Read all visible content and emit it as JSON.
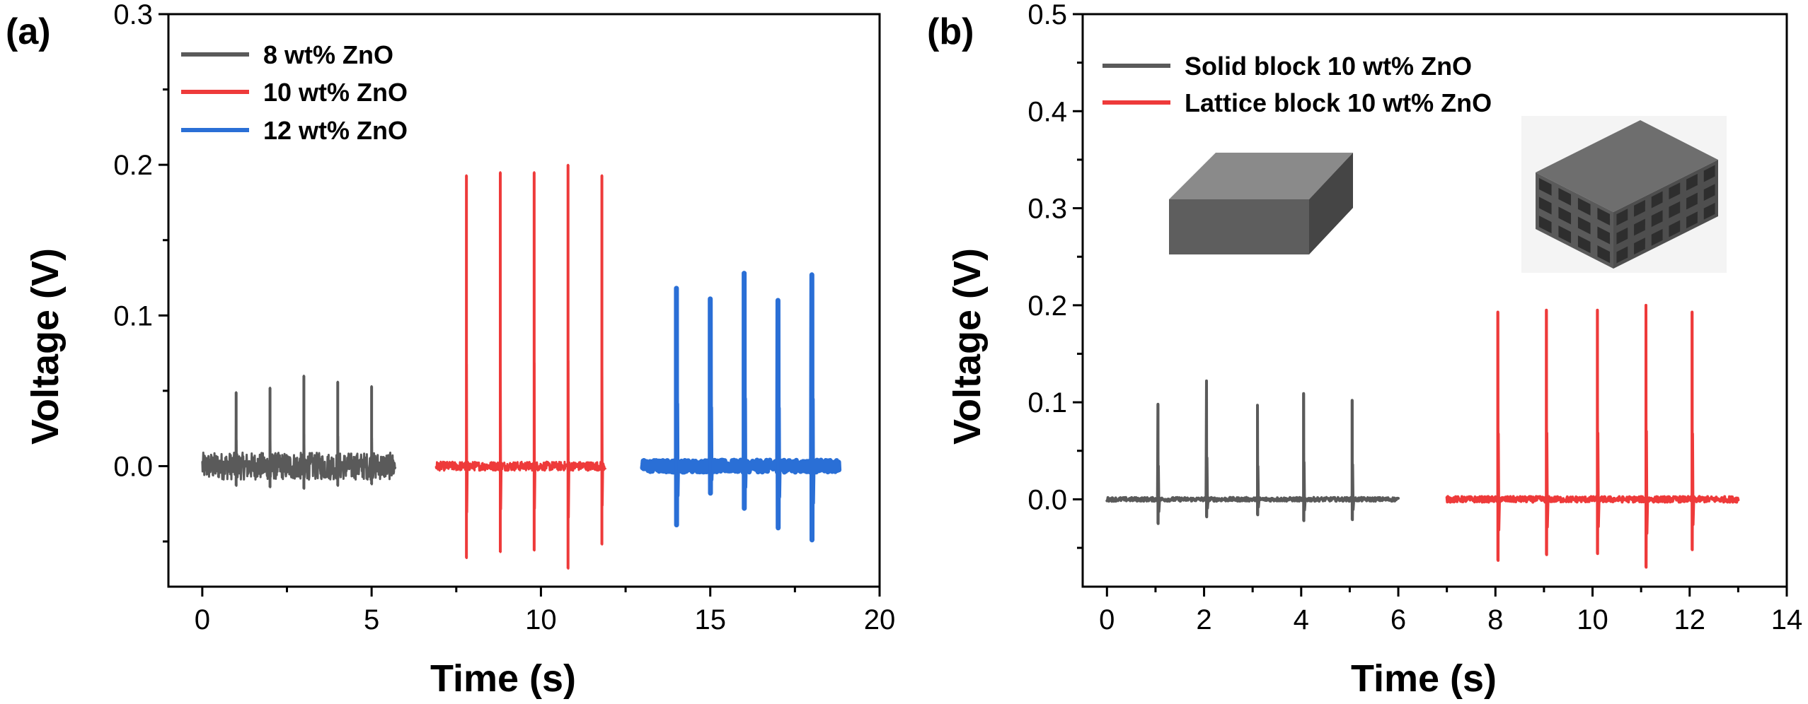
{
  "colors": {
    "gray": "#5a5a5a",
    "red": "#ee3a3a",
    "blue": "#2a6fd6",
    "axis": "#000000",
    "solid_top": "#8a8a8a",
    "solid_front": "#5e5e5e",
    "solid_side": "#454545",
    "lattice_body": "#5a5a5a",
    "lattice_top": "#6e6e6e",
    "lattice_cell": "#2e2e2e"
  },
  "chart_data": [
    {
      "id": "a",
      "panel_label": "(a)",
      "type": "line",
      "xlabel": "Time (s)",
      "ylabel": "Voltage (V)",
      "xlim": [
        -1,
        20
      ],
      "ylim": [
        -0.08,
        0.3
      ],
      "xticks": [
        0,
        5,
        10,
        15,
        20
      ],
      "xtick_labels": [
        "0",
        "5",
        "10",
        "15",
        "20"
      ],
      "yticks": [
        0.0,
        0.1,
        0.2,
        0.3
      ],
      "ytick_labels": [
        "0.0",
        "0.1",
        "0.2",
        "0.3"
      ],
      "legend_position": "top-left",
      "series": [
        {
          "name": "8 wt% ZnO",
          "color_key": "gray",
          "x_range": [
            0,
            5.7
          ],
          "peak_times": [
            1.0,
            2.0,
            3.0,
            4.0,
            5.0
          ],
          "peaks": [
            0.049,
            0.052,
            0.06,
            0.056,
            0.053
          ],
          "troughs": [
            -0.013,
            -0.014,
            -0.015,
            -0.013,
            -0.012
          ],
          "noise": 0.009,
          "width": 3
        },
        {
          "name": "10 wt% ZnO",
          "color_key": "red",
          "x_range": [
            6.9,
            11.9
          ],
          "peak_times": [
            7.8,
            8.8,
            9.8,
            10.8,
            11.8
          ],
          "peaks": [
            0.193,
            0.195,
            0.195,
            0.2,
            0.193
          ],
          "troughs": [
            -0.061,
            -0.057,
            -0.056,
            -0.068,
            -0.052
          ],
          "noise": 0.003,
          "width": 3
        },
        {
          "name": "12 wt% ZnO",
          "color_key": "blue",
          "x_range": [
            13.0,
            18.8
          ],
          "peak_times": [
            14.0,
            15.0,
            16.0,
            17.0,
            18.0
          ],
          "peaks": [
            0.118,
            0.111,
            0.128,
            0.11,
            0.127
          ],
          "troughs": [
            -0.039,
            -0.018,
            -0.028,
            -0.041,
            -0.049
          ],
          "noise": 0.004,
          "width": 7
        }
      ]
    },
    {
      "id": "b",
      "panel_label": "(b)",
      "type": "line",
      "xlabel": "Time (s)",
      "ylabel": "Voltage (V)",
      "xlim": [
        -0.5,
        14
      ],
      "ylim": [
        -0.09,
        0.5
      ],
      "xticks": [
        0,
        2,
        4,
        6,
        8,
        10,
        12,
        14
      ],
      "xtick_labels": [
        "0",
        "2",
        "4",
        "6",
        "8",
        "10",
        "12",
        "14"
      ],
      "yticks": [
        0.0,
        0.1,
        0.2,
        0.3,
        0.4,
        0.5
      ],
      "ytick_labels": [
        "0.0",
        "0.1",
        "0.2",
        "0.3",
        "0.4",
        "0.5"
      ],
      "legend_position": "top-left",
      "series": [
        {
          "name": "Solid block 10 wt% ZnO",
          "color_key": "gray",
          "x_range": [
            0,
            6.0
          ],
          "peak_times": [
            1.05,
            2.05,
            3.1,
            4.05,
            5.05
          ],
          "peaks": [
            0.098,
            0.122,
            0.097,
            0.109,
            0.102
          ],
          "troughs": [
            -0.025,
            -0.018,
            -0.016,
            -0.022,
            -0.021
          ],
          "noise": 0.002,
          "width": 4
        },
        {
          "name": "Lattice block 10 wt% ZnO",
          "color_key": "red",
          "x_range": [
            7.0,
            13.0
          ],
          "peak_times": [
            8.05,
            9.05,
            10.1,
            11.1,
            12.05
          ],
          "peaks": [
            0.193,
            0.195,
            0.195,
            0.2,
            0.193
          ],
          "troughs": [
            -0.063,
            -0.057,
            -0.056,
            -0.07,
            -0.052
          ],
          "noise": 0.003,
          "width": 4
        }
      ]
    }
  ]
}
